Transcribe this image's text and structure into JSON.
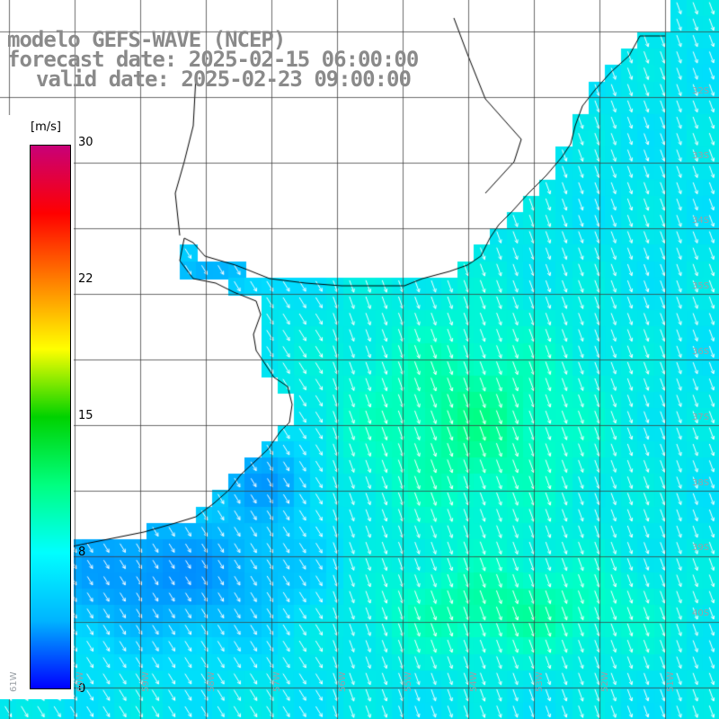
{
  "title": {
    "line1": "modelo GEFS-WAVE (NCEP)",
    "line2": "forecast date: 2025-02-15 06:00:00",
    "line3": "valid date: 2025-02-23 09:00:00"
  },
  "colorbar": {
    "unit": "[m/s]",
    "ticks": [
      "30",
      "22",
      "15",
      "8",
      "0"
    ],
    "tick_values": [
      30,
      22,
      15,
      8,
      0
    ],
    "min": 0,
    "max": 30,
    "colors": [
      "#0000ff",
      "#00b4ff",
      "#00ffff",
      "#00ff80",
      "#00d200",
      "#ffff00",
      "#ff8000",
      "#ff0000",
      "#c80078"
    ]
  },
  "map": {
    "variable": "wind speed and direction",
    "land_color": "#ffffff",
    "grid_lines": true,
    "lat_labels": [
      "32S",
      "33S",
      "34S",
      "35S",
      "36S",
      "37S",
      "38S",
      "39S",
      "40S"
    ],
    "lon_labels": [
      "61W",
      "60W",
      "59W",
      "58W",
      "57W",
      "56W",
      "55W",
      "54W",
      "53W",
      "52W",
      "51W"
    ]
  }
}
